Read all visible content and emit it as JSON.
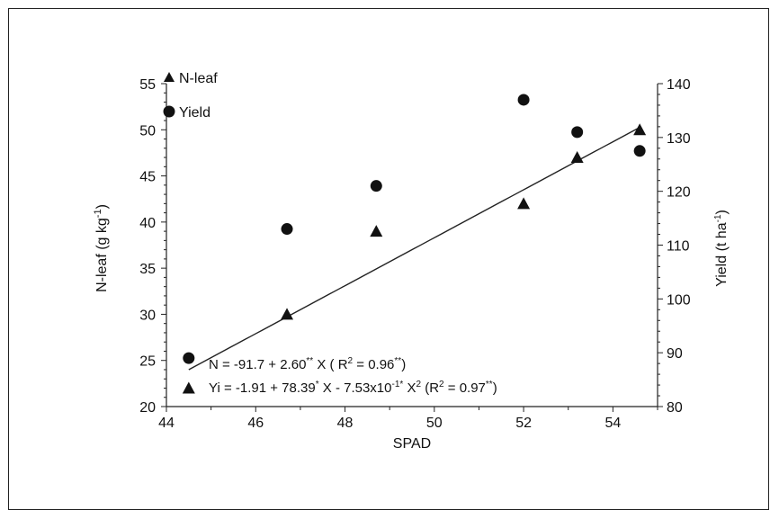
{
  "chart_data": {
    "type": "scatter",
    "xlabel": "SPAD",
    "ylabel": "N-leaf (g kg",
    "ylabel_sup": "-1",
    "ylabel_end": ")",
    "y2label": "Yield (t ha",
    "y2label_sup": "-1",
    "y2label_end": ")",
    "xlim": [
      44,
      55
    ],
    "ylim": [
      20,
      55
    ],
    "y2lim": [
      80,
      140
    ],
    "x_ticks": [
      44,
      46,
      48,
      50,
      52,
      54
    ],
    "y_ticks": [
      20,
      25,
      30,
      35,
      40,
      45,
      50,
      55
    ],
    "y2_ticks": [
      80,
      90,
      100,
      110,
      120,
      130,
      140
    ],
    "grid": false,
    "legend_position": "top-left",
    "series": [
      {
        "name": "N-leaf",
        "axis": "left",
        "marker": "triangle",
        "x": [
          44.5,
          46.7,
          48.7,
          52.0,
          53.2,
          54.6
        ],
        "y": [
          22.0,
          30.0,
          39.0,
          42.0,
          47.0,
          50.0
        ]
      },
      {
        "name": "Yield",
        "axis": "right",
        "marker": "circle",
        "x": [
          44.5,
          46.7,
          48.7,
          52.0,
          53.2,
          54.6
        ],
        "y": [
          89.0,
          113.0,
          121.0,
          137.0,
          131.0,
          127.5
        ]
      }
    ],
    "fits": [
      {
        "series": "N-leaf",
        "type": "linear",
        "intercept": -91.7,
        "slope": 2.6,
        "x_range": [
          44.5,
          54.6
        ]
      },
      {
        "series": "Yield",
        "type": "quadratic",
        "a": -1.91,
        "b": 78.39,
        "c": -0.753,
        "x_range": [
          44.5,
          54.6
        ]
      }
    ],
    "annotations": {
      "eq_n": {
        "p1": "N =  -91.7 + 2.60",
        "s1": "**",
        "p2": " X    ( R",
        "s2": "2",
        "p3": " = 0.96",
        "s3": "**",
        "p4": ")"
      },
      "eq_y": {
        "p1": "Yi = -1.91 + 78.39",
        "s1": "*",
        "p2": " X - 7.53x10",
        "s2": "-1*",
        "p3": " X",
        "s3": "2",
        "p4": "    (R",
        "s4": "2",
        "p5": " = 0.97",
        "s5": "**",
        "p6": ")"
      }
    }
  }
}
